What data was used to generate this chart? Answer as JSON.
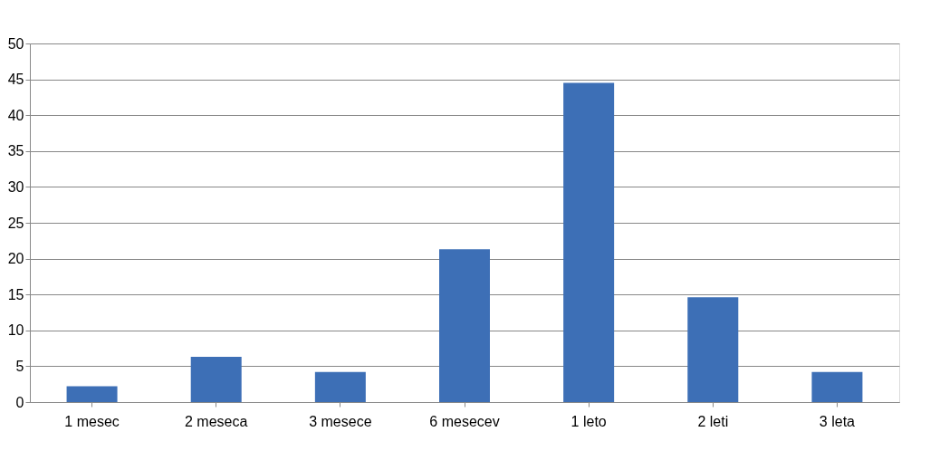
{
  "chart_data": {
    "type": "bar",
    "categories": [
      "1 mesec",
      "2 meseca",
      "3 mesece",
      "6 mesecev",
      "1 leto",
      "2 leti",
      "3 leta"
    ],
    "values": [
      2.2,
      6.3,
      4.2,
      21.3,
      44.5,
      14.6,
      4.2
    ],
    "color": "#3d6fb6",
    "ylim": [
      0,
      50
    ],
    "yticks": [
      0,
      5,
      10,
      15,
      20,
      25,
      30,
      35,
      40,
      45,
      50
    ],
    "grid": "y"
  }
}
